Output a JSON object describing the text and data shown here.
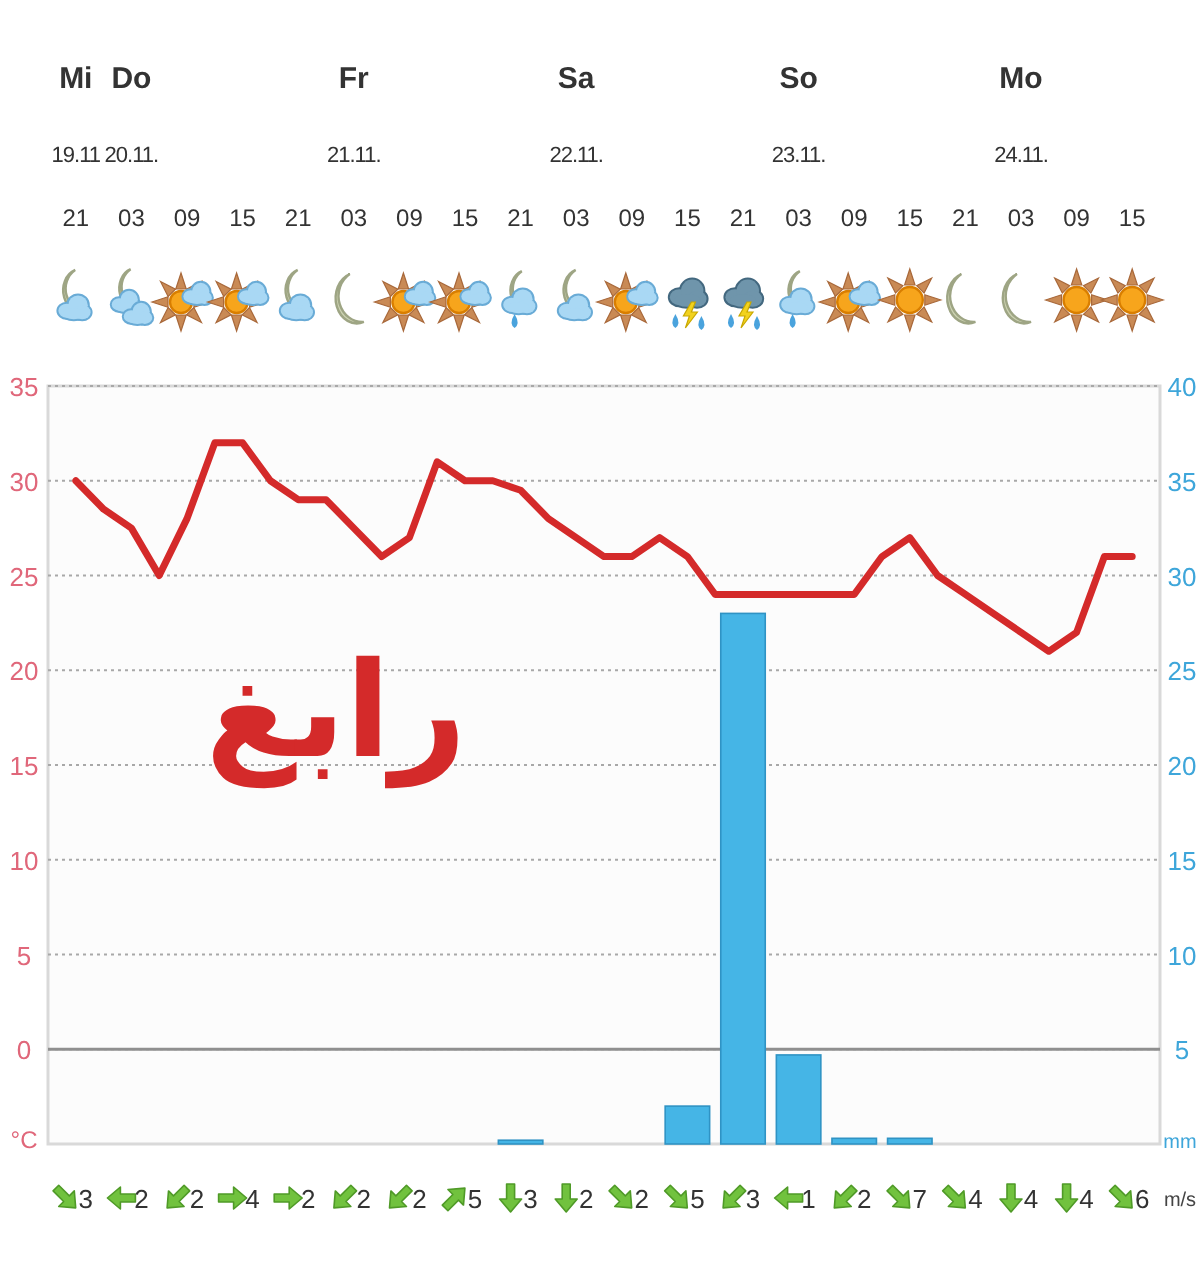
{
  "chart_data": [
    {
      "type": "line",
      "categories": [
        "Mi\n19.11\n21",
        null,
        "Do\n20.11.\n03",
        null,
        "09",
        null,
        "15",
        null,
        "21",
        null,
        "Fr\n21.11.\n03",
        null,
        "09",
        null,
        "15",
        null,
        "21",
        null,
        "Sa\n22.11.\n03",
        null,
        "09",
        null,
        "15",
        null,
        "21",
        null,
        "So\n23.11.\n03",
        null,
        "09",
        null,
        "15",
        null,
        "21",
        null,
        "Mo\n24.11.\n03",
        null,
        "09",
        null,
        "15"
      ],
      "series": [
        {
          "type": "bar",
          "axis": "y2",
          "color": "#45b5e6",
          "values": [
            null,
            null,
            null,
            null,
            null,
            null,
            null,
            null,
            null,
            null,
            null,
            null,
            null,
            null,
            null,
            null,
            0.2,
            null,
            null,
            null,
            null,
            null,
            2,
            null,
            28,
            null,
            4.7,
            null,
            0.3,
            null,
            0.3,
            null,
            null,
            null,
            null,
            null,
            null,
            null,
            null
          ]
        },
        {
          "type": "line",
          "color": "#d42a2a",
          "values": [
            30,
            28.5,
            27.5,
            25,
            28,
            32,
            32,
            30,
            29,
            29,
            27.5,
            26,
            27,
            31,
            30,
            30,
            29.5,
            28,
            27,
            26,
            26,
            27,
            26,
            24,
            24,
            24,
            24,
            24,
            24,
            26,
            27,
            25,
            24,
            23,
            22,
            21,
            22,
            26,
            26
          ]
        }
      ],
      "ylabel": "°C",
      "y2label": "mm",
      "ylim": [
        -5,
        35
      ],
      "yticks": [
        0,
        5,
        10,
        15,
        20,
        25,
        30,
        35
      ],
      "y2lim": [
        0,
        40
      ],
      "y2ticks": [
        5,
        10,
        15,
        20,
        25,
        30,
        35,
        40
      ],
      "grid": "y",
      "ref_lines": [
        {
          "axis": "y",
          "value": 0,
          "color": "#8f8f8f"
        }
      ],
      "annotations": [
        "رابغ"
      ]
    },
    {
      "type": "other",
      "categories": [
        null,
        null,
        null,
        null,
        null,
        null,
        null,
        null,
        null,
        null,
        null,
        null,
        null,
        null,
        null,
        null,
        null,
        null,
        null,
        null
      ],
      "values": [
        3,
        2,
        2,
        4,
        2,
        2,
        2,
        5,
        3,
        2,
        2,
        5,
        3,
        1,
        2,
        7,
        4,
        4,
        4,
        6
      ],
      "data_labels": true,
      "annotations": [
        "m/s"
      ]
    }
  ]
}
